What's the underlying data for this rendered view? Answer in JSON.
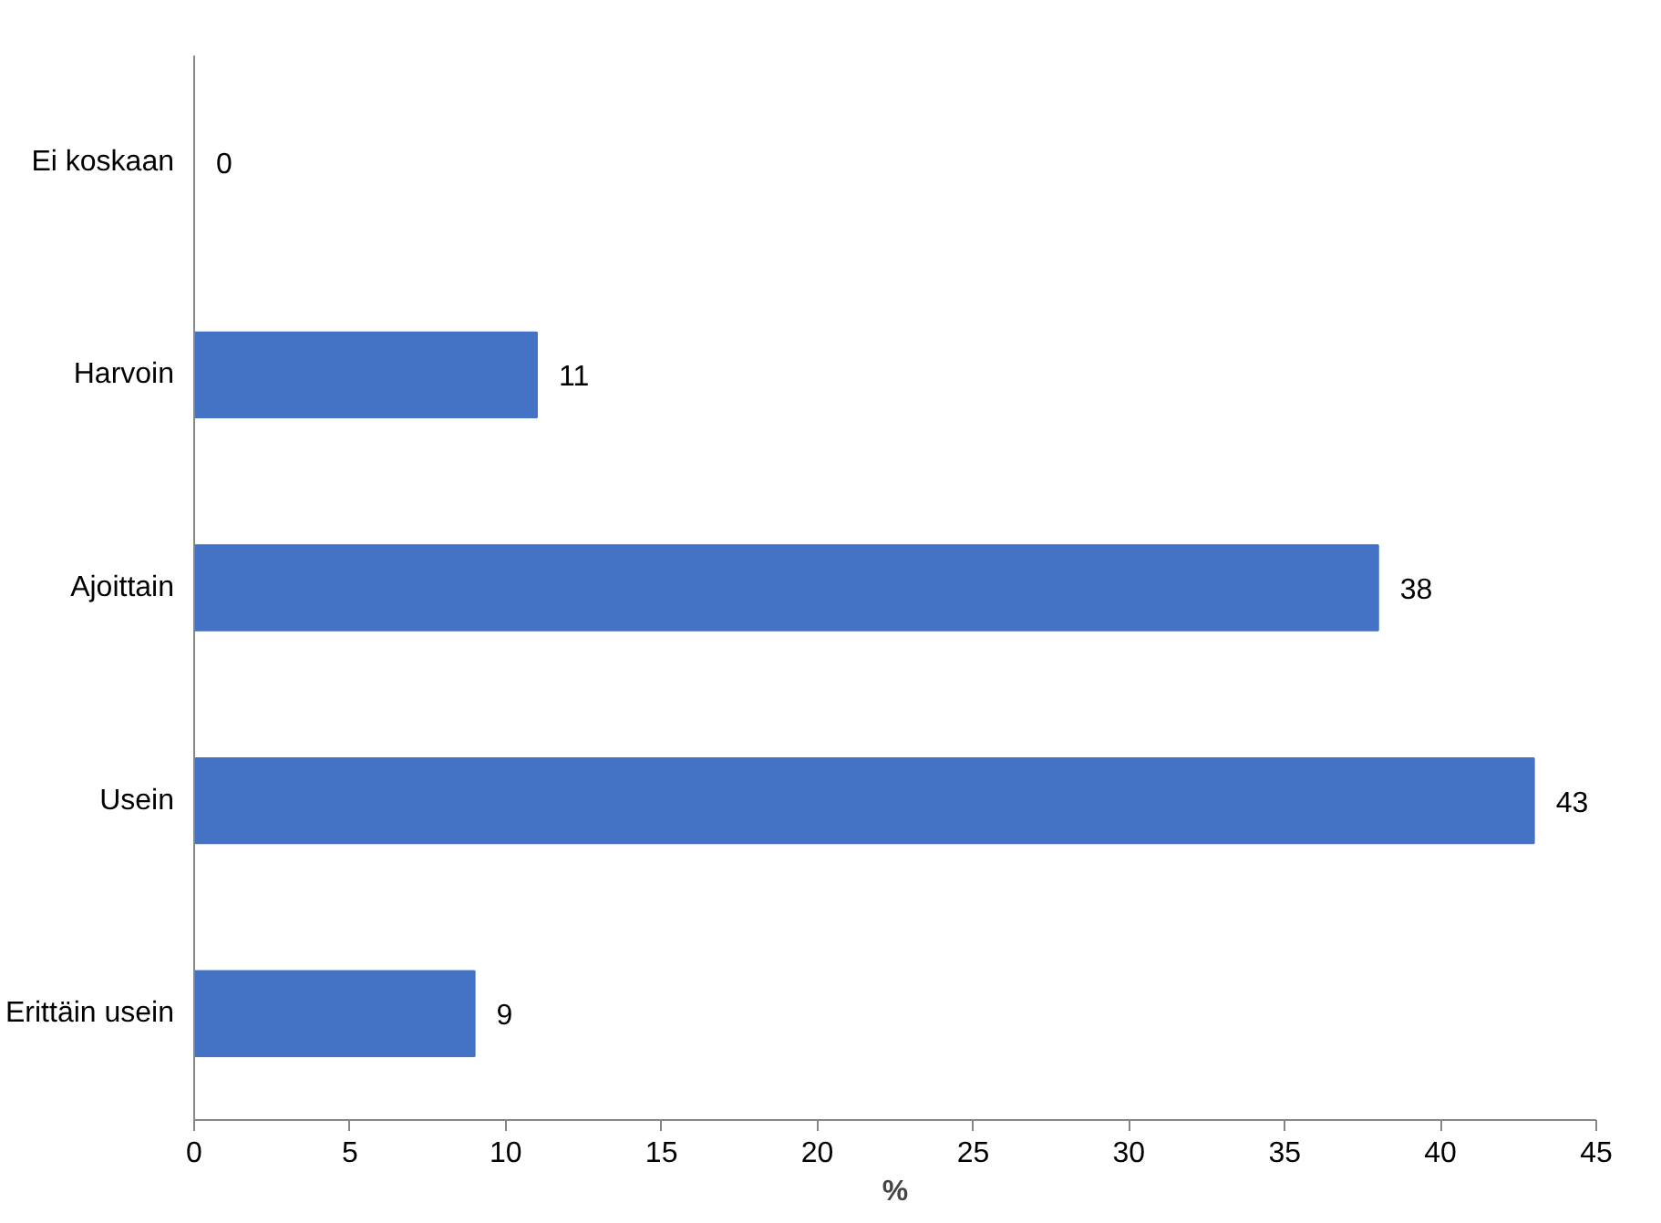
{
  "chart_data": {
    "type": "bar",
    "orientation": "horizontal",
    "xlabel": "%",
    "categories": [
      "Ei koskaan",
      "Harvoin",
      "Ajoittain",
      "Usein",
      "Erittäin usein"
    ],
    "values": [
      0,
      11,
      38,
      43,
      9
    ],
    "color": "#4472c4",
    "data_labels": true,
    "xlim": [
      0,
      45
    ],
    "xticks": [
      0,
      5,
      10,
      15,
      20,
      25,
      30,
      35,
      40,
      45
    ]
  }
}
